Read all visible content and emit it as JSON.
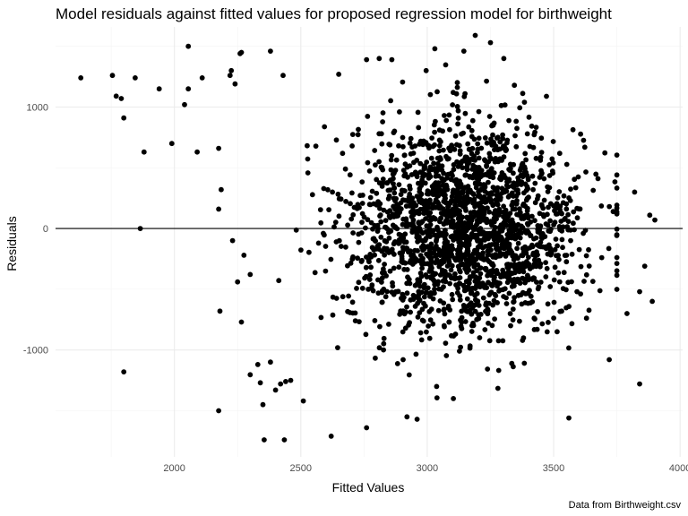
{
  "chart_data": {
    "type": "scatter",
    "title": "Model residuals against fitted values for proposed regression model for birthweight",
    "xlabel": "Fitted Values",
    "ylabel": "Residuals",
    "caption": "Data from Birthweight.csv",
    "xlim": [
      1530,
      4010
    ],
    "ylim": [
      -1880,
      1660
    ],
    "x_ticks": [
      2000,
      2500,
      3000,
      3500,
      4000
    ],
    "x_tick_labels": [
      "2000",
      "2500",
      "3000",
      "3500",
      "4000"
    ],
    "y_ticks": [
      -1000,
      0,
      1000
    ],
    "y_tick_labels": [
      "-1000",
      "0",
      "1000"
    ],
    "x_minor_ticks": [
      1750,
      2250,
      2750,
      3250,
      3750
    ],
    "y_minor_ticks": [
      -1500,
      -500,
      500,
      1500
    ],
    "reference_line_y": 0,
    "grid": true,
    "legend": "none",
    "point_color": "#000000",
    "outlier_points": [
      [
        1630,
        1240
      ],
      [
        1755,
        1260
      ],
      [
        1770,
        1090
      ],
      [
        1790,
        1070
      ],
      [
        1800,
        910
      ],
      [
        1845,
        1240
      ],
      [
        1880,
        630
      ],
      [
        1865,
        0
      ],
      [
        1800,
        -1180
      ],
      [
        1940,
        1150
      ],
      [
        1990,
        700
      ],
      [
        2040,
        1020
      ],
      [
        2055,
        1500
      ],
      [
        2055,
        1150
      ],
      [
        2090,
        630
      ],
      [
        2110,
        1240
      ],
      [
        2175,
        660
      ],
      [
        2175,
        160
      ],
      [
        2185,
        320
      ],
      [
        2180,
        -680
      ],
      [
        2175,
        -1500
      ],
      [
        2220,
        1260
      ],
      [
        2225,
        1300
      ],
      [
        2240,
        1190
      ],
      [
        2260,
        1440
      ],
      [
        2265,
        1450
      ],
      [
        2230,
        -100
      ],
      [
        2250,
        -440
      ],
      [
        2265,
        -770
      ],
      [
        2275,
        -220
      ],
      [
        2330,
        -1120
      ],
      [
        2340,
        -1270
      ],
      [
        2350,
        -1450
      ],
      [
        2355,
        -1740
      ],
      [
        2380,
        1460
      ],
      [
        2420,
        -1280
      ],
      [
        2435,
        -1740
      ],
      [
        2430,
        1260
      ],
      [
        2380,
        -1100
      ],
      [
        2400,
        -1330
      ],
      [
        2440,
        -1260
      ],
      [
        2460,
        -1250
      ],
      [
        2510,
        -1420
      ],
      [
        2620,
        -1710
      ],
      [
        2650,
        1270
      ],
      [
        2760,
        1390
      ],
      [
        2760,
        -1640
      ],
      [
        2810,
        1400
      ],
      [
        2860,
        1390
      ],
      [
        2920,
        -1550
      ],
      [
        2960,
        -1570
      ],
      [
        3030,
        1480
      ],
      [
        3145,
        1460
      ],
      [
        3190,
        1590
      ],
      [
        3250,
        1530
      ],
      [
        3560,
        -1560
      ],
      [
        3720,
        -1080
      ],
      [
        3820,
        300
      ],
      [
        3840,
        -1280
      ],
      [
        3860,
        -310
      ],
      [
        3890,
        -600
      ],
      [
        3900,
        70
      ],
      [
        3880,
        110
      ],
      [
        3840,
        -520
      ],
      [
        3790,
        -700
      ]
    ],
    "core_distribution": {
      "n_points": 2100,
      "x_center": 3150,
      "x_sd": 230,
      "y_center": 0,
      "y_sd": 430,
      "x_range": [
        2300,
        3750
      ],
      "y_range": [
        -1400,
        1400
      ]
    }
  }
}
